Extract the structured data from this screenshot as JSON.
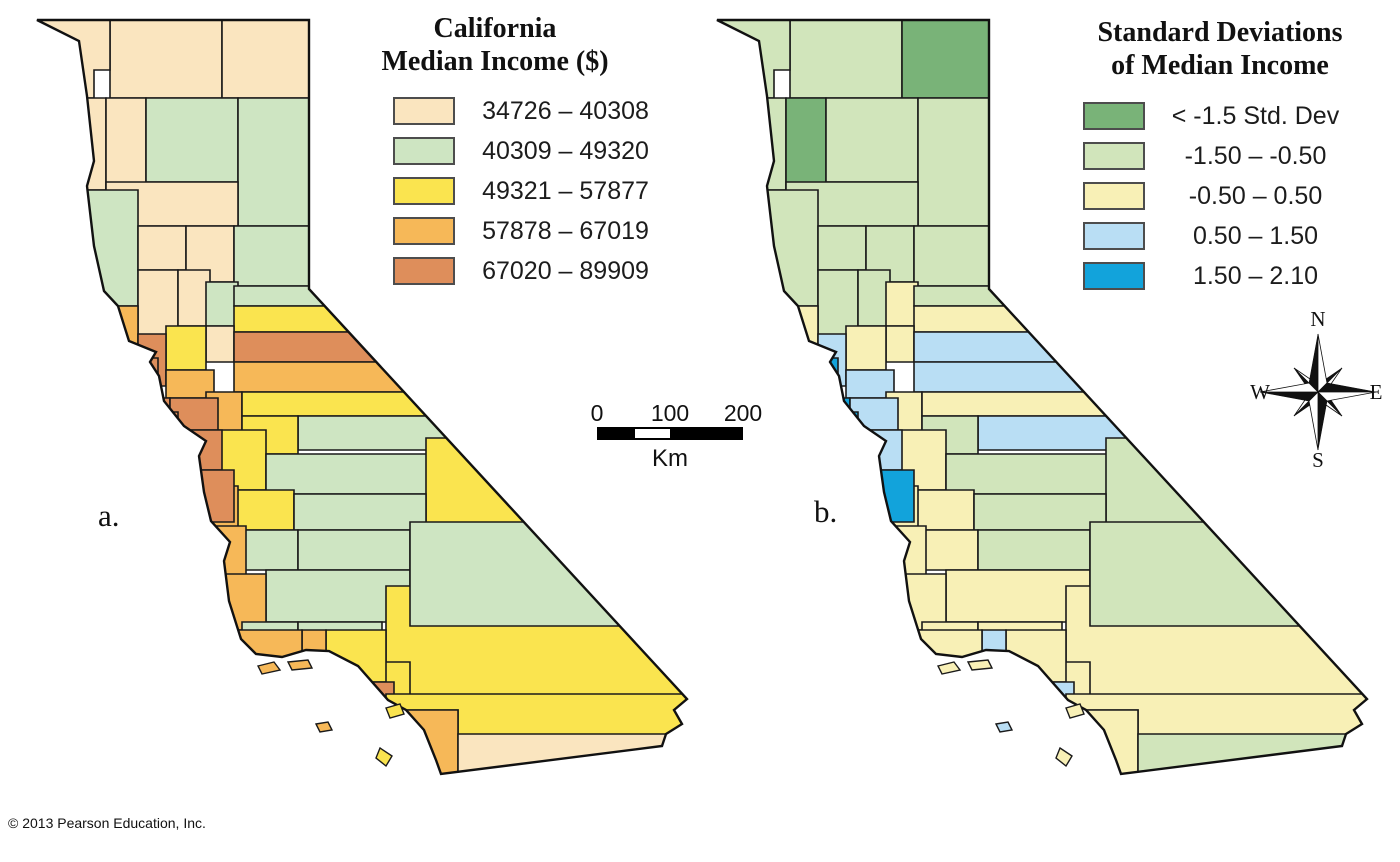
{
  "panel_a": {
    "label": "a.",
    "legend_title": [
      "California",
      "Median Income ($)"
    ],
    "legend": [
      {
        "label": "34726 – 40308",
        "color": "#FAE5BF"
      },
      {
        "label": "40309 – 49320",
        "color": "#CEE5C2"
      },
      {
        "label": "49321 – 57877",
        "color": "#FAE44F"
      },
      {
        "label": "57878 – 67019",
        "color": "#F6B858"
      },
      {
        "label": "67020 – 89909",
        "color": "#DE8E5B"
      }
    ]
  },
  "panel_b": {
    "label": "b.",
    "legend_title": [
      "Standard Deviations",
      "of Median Income"
    ],
    "legend": [
      {
        "label": "< -1.5 Std. Dev",
        "color": "#79B378"
      },
      {
        "label": "-1.50 – -0.50",
        "color": "#D1E5BB"
      },
      {
        "label": "-0.50 – 0.50",
        "color": "#F8F0B6"
      },
      {
        "label": "0.50 – 1.50",
        "color": "#B9DEF4"
      },
      {
        "label": "1.50 – 2.10",
        "color": "#12A3DB"
      }
    ]
  },
  "scale_bar": {
    "ticks": [
      "0",
      "100",
      "200"
    ],
    "unit": "Km"
  },
  "compass": {
    "north": "N",
    "east": "E",
    "south": "S",
    "west": "W"
  },
  "copyright": "© 2013 Pearson Education, Inc.",
  "map_data": {
    "type": "choropleth",
    "region": "California counties",
    "class_meaning": {
      "a": "median income class 1-5 (low to high)",
      "b": "std dev class 1-5 (< -1.5 to 2.10)"
    },
    "regions": [
      {
        "id": "siskiyou",
        "a": 1,
        "b": 2
      },
      {
        "id": "modoc",
        "a": 1,
        "b": 1
      },
      {
        "id": "delnorte",
        "a": 1,
        "b": 2
      },
      {
        "id": "humboldt",
        "a": 1,
        "b": 2
      },
      {
        "id": "trinity",
        "a": 1,
        "b": 1
      },
      {
        "id": "shasta",
        "a": 2,
        "b": 2
      },
      {
        "id": "lassen",
        "a": 2,
        "b": 2
      },
      {
        "id": "tehama",
        "a": 1,
        "b": 2
      },
      {
        "id": "mendocino",
        "a": 2,
        "b": 2
      },
      {
        "id": "glenn",
        "a": 1,
        "b": 2
      },
      {
        "id": "butte",
        "a": 1,
        "b": 2
      },
      {
        "id": "plumas",
        "a": 2,
        "b": 2
      },
      {
        "id": "lake",
        "a": 1,
        "b": 2
      },
      {
        "id": "colusa",
        "a": 1,
        "b": 2
      },
      {
        "id": "yuba",
        "a": 2,
        "b": 3
      },
      {
        "id": "sierra_county",
        "a": 2,
        "b": 2
      },
      {
        "id": "nevada_county",
        "a": 3,
        "b": 3
      },
      {
        "id": "sutter",
        "a": 1,
        "b": 3
      },
      {
        "id": "placer",
        "a": 5,
        "b": 4
      },
      {
        "id": "eldorado",
        "a": 4,
        "b": 4
      },
      {
        "id": "yolo",
        "a": 3,
        "b": 3
      },
      {
        "id": "sonoma",
        "a": 4,
        "b": 3
      },
      {
        "id": "napa",
        "a": 5,
        "b": 4
      },
      {
        "id": "solano",
        "a": 4,
        "b": 4
      },
      {
        "id": "sacramento",
        "a": 4,
        "b": 3
      },
      {
        "id": "amador",
        "a": 3,
        "b": 3
      },
      {
        "id": "alpine",
        "a": 2,
        "b": 4
      },
      {
        "id": "calaveras",
        "a": 3,
        "b": 2
      },
      {
        "id": "sanjoaquin",
        "a": 3,
        "b": 3
      },
      {
        "id": "marin",
        "a": 5,
        "b": 5
      },
      {
        "id": "san_francisco",
        "a": 5,
        "b": 5
      },
      {
        "id": "contracosta",
        "a": 5,
        "b": 4
      },
      {
        "id": "sanmateo",
        "a": 5,
        "b": 5
      },
      {
        "id": "alameda",
        "a": 5,
        "b": 4
      },
      {
        "id": "tuolumne",
        "a": 2,
        "b": 2
      },
      {
        "id": "mono",
        "a": 3,
        "b": 2
      },
      {
        "id": "stanislaus",
        "a": 3,
        "b": 3
      },
      {
        "id": "mariposa",
        "a": 2,
        "b": 2
      },
      {
        "id": "monterey",
        "a": 4,
        "b": 3
      },
      {
        "id": "santaclara",
        "a": 5,
        "b": 5
      },
      {
        "id": "santacruz",
        "a": 4,
        "b": 4
      },
      {
        "id": "merced",
        "a": 2,
        "b": 3
      },
      {
        "id": "sanbenito",
        "a": 4,
        "b": 3
      },
      {
        "id": "madera",
        "a": 2,
        "b": 2
      },
      {
        "id": "fresno",
        "a": 2,
        "b": 3
      },
      {
        "id": "sanbernardino",
        "a": 3,
        "b": 3
      },
      {
        "id": "inyo",
        "a": 2,
        "b": 2
      },
      {
        "id": "slo",
        "a": 4,
        "b": 3
      },
      {
        "id": "kings",
        "a": 2,
        "b": 3
      },
      {
        "id": "tulare",
        "a": 2,
        "b": 3
      },
      {
        "id": "kern",
        "a": 3,
        "b": 3
      },
      {
        "id": "losangeles",
        "a": 3,
        "b": 3
      },
      {
        "id": "ventura",
        "a": 4,
        "b": 4
      },
      {
        "id": "santabarbara",
        "a": 4,
        "b": 3
      },
      {
        "id": "orange",
        "a": 5,
        "b": 4
      },
      {
        "id": "riverside",
        "a": 3,
        "b": 3
      },
      {
        "id": "sandiego",
        "a": 4,
        "b": 3
      },
      {
        "id": "imperial",
        "a": 1,
        "b": 2
      }
    ],
    "islands": [
      {
        "id": "santa_rosa_island",
        "a": 4,
        "b": 3
      },
      {
        "id": "santa_cruz_island",
        "a": 4,
        "b": 3
      },
      {
        "id": "san_nicolas_island",
        "a": 4,
        "b": 4
      },
      {
        "id": "santa_catalina_island",
        "a": 3,
        "b": 3
      },
      {
        "id": "san_clemente_island",
        "a": 3,
        "b": 3
      }
    ]
  }
}
